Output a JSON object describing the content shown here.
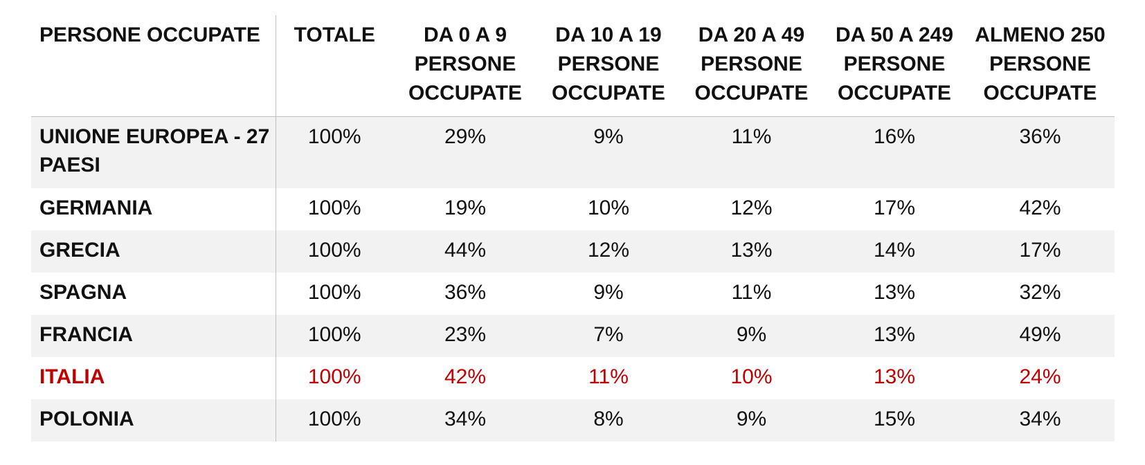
{
  "colors": {
    "text": "#111111",
    "highlight": "#c00000",
    "row_shade": "#f2f2f2",
    "rule": "#bfbfbf"
  },
  "chart_data": {
    "type": "table",
    "columns": [
      "PERSONE OCCUPATE",
      "TOTALE",
      "DA 0 A 9 PERSONE OCCUPATE",
      "DA 10 A 19 PERSONE OCCUPATE",
      "DA 20 A 49 PERSONE OCCUPATE",
      "DA 50 A 249 PERSONE OCCUPATE",
      "ALMENO 250 PERSONE OCCUPATE"
    ],
    "rows": [
      {
        "label": "UNIONE EUROPEA - 27 PAESI",
        "values": [
          "100%",
          "29%",
          "9%",
          "11%",
          "16%",
          "36%"
        ],
        "highlight": false,
        "shaded": true
      },
      {
        "label": "GERMANIA",
        "values": [
          "100%",
          "19%",
          "10%",
          "12%",
          "17%",
          "42%"
        ],
        "highlight": false,
        "shaded": false
      },
      {
        "label": "GRECIA",
        "values": [
          "100%",
          "44%",
          "12%",
          "13%",
          "14%",
          "17%"
        ],
        "highlight": false,
        "shaded": true
      },
      {
        "label": "SPAGNA",
        "values": [
          "100%",
          "36%",
          "9%",
          "11%",
          "13%",
          "32%"
        ],
        "highlight": false,
        "shaded": false
      },
      {
        "label": "FRANCIA",
        "values": [
          "100%",
          "23%",
          "7%",
          "9%",
          "13%",
          "49%"
        ],
        "highlight": false,
        "shaded": true
      },
      {
        "label": "ITALIA",
        "values": [
          "100%",
          "42%",
          "11%",
          "10%",
          "13%",
          "24%"
        ],
        "highlight": true,
        "shaded": false
      },
      {
        "label": "POLONIA",
        "values": [
          "100%",
          "34%",
          "8%",
          "9%",
          "15%",
          "34%"
        ],
        "highlight": false,
        "shaded": true
      }
    ]
  }
}
